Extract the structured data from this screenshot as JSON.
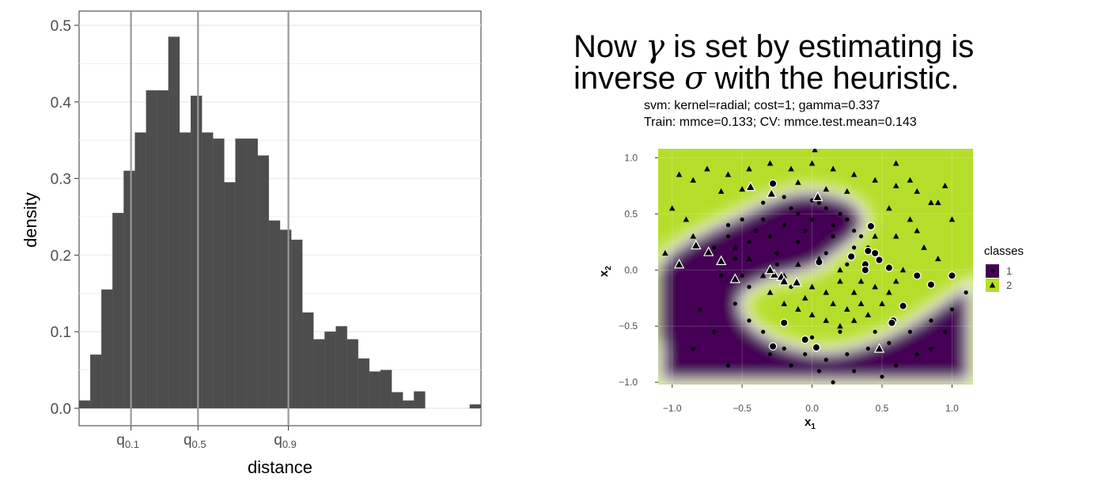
{
  "colors": {
    "bar_fill": "#4d4d4d",
    "quantile_line": "#999999",
    "grid": "#ebebeb",
    "class1_region": "#440154",
    "class2_region": "#b5de2b",
    "boundary": "#ffffff"
  },
  "chart_data": [
    {
      "type": "bar",
      "xlabel": "distance",
      "ylabel": "density",
      "ylim": [
        0,
        0.5
      ],
      "y_ticks": [
        "0.0",
        "0.1",
        "0.2",
        "0.3",
        "0.4",
        "0.5"
      ],
      "y_tick_values": [
        0,
        0.1,
        0.2,
        0.3,
        0.4,
        0.5
      ],
      "x_tick_labels": [
        {
          "base": "q",
          "sub": "0.1",
          "bin": 4.65
        },
        {
          "base": "q",
          "sub": "0.5",
          "bin": 10.65
        },
        {
          "base": "q",
          "sub": "0.9",
          "bin": 18.75
        }
      ],
      "quantile_lines_bin": [
        4.65,
        10.65,
        18.75
      ],
      "values": [
        0.01,
        0.07,
        0.155,
        0.255,
        0.31,
        0.36,
        0.415,
        0.415,
        0.485,
        0.36,
        0.408,
        0.36,
        0.352,
        0.295,
        0.352,
        0.352,
        0.33,
        0.245,
        0.233,
        0.22,
        0.125,
        0.09,
        0.1,
        0.107,
        0.09,
        0.065,
        0.048,
        0.05,
        0.021,
        0.01,
        0.022,
        0.0,
        0.0,
        0.0,
        0.0,
        0.005
      ],
      "grid": true
    },
    {
      "type": "scatter",
      "title_line1_prefix": "Now ",
      "title_gamma": "γ",
      "title_line1_suffix": " is set by estimating is",
      "title_line2_prefix": "inverse ",
      "title_sigma": "σ",
      "title_line2_suffix": " with the heuristic.",
      "subtitle1": "svm: kernel=radial; cost=1; gamma=0.337",
      "subtitle2": "Train: mmce=0.133; CV: mmce.test.mean=0.143",
      "xlabel_base": "x",
      "xlabel_sub": "1",
      "ylabel_base": "x",
      "ylabel_sub": "2",
      "xlim": [
        -1.1,
        1.15
      ],
      "ylim": [
        -1.02,
        1.08
      ],
      "x_ticks": [
        -1.0,
        -0.5,
        0.0,
        0.5,
        1.0
      ],
      "x_tick_labels": [
        "−1.0",
        "−0.5",
        "0.0",
        "0.5",
        "1.0"
      ],
      "y_ticks": [
        -1.0,
        -0.5,
        0.0,
        0.5,
        1.0
      ],
      "y_tick_labels": [
        "−1.0",
        "−0.5",
        "0.0",
        "0.5",
        "1.0"
      ],
      "legend_title": "classes",
      "legend_position": "right",
      "legend_items": [
        {
          "label": "1",
          "shape": "circle",
          "region": "#440154"
        },
        {
          "label": "2",
          "shape": "triangle",
          "region": "#b5de2b"
        }
      ],
      "series": [
        {
          "name": "1",
          "shape": "circle",
          "points": [
            [
              -0.7,
              0.2
            ],
            [
              -0.6,
              0.3
            ],
            [
              -0.55,
              0.1
            ],
            [
              -0.5,
              -0.05
            ],
            [
              -0.45,
              0.25
            ],
            [
              -0.4,
              0.35
            ],
            [
              -0.35,
              0.45
            ],
            [
              -0.3,
              0.3
            ],
            [
              -0.25,
              0.15
            ],
            [
              -0.2,
              0.4
            ],
            [
              -0.15,
              0.55
            ],
            [
              -0.1,
              0.5
            ],
            [
              -0.05,
              0.35
            ],
            [
              0.0,
              0.45
            ],
            [
              0.05,
              0.6
            ],
            [
              0.1,
              0.55
            ],
            [
              0.15,
              0.4
            ],
            [
              0.2,
              0.5
            ],
            [
              0.25,
              0.45
            ],
            [
              0.3,
              0.35
            ],
            [
              0.35,
              0.3
            ],
            [
              0.4,
              0.2
            ],
            [
              -0.65,
              -0.05
            ],
            [
              -0.5,
              0.45
            ],
            [
              -0.35,
              0.6
            ],
            [
              -0.2,
              0.65
            ],
            [
              0.0,
              0.62
            ],
            [
              0.15,
              0.3
            ],
            [
              0.3,
              0.2
            ],
            [
              -0.1,
              0.25
            ],
            [
              -0.6,
              0.4
            ],
            [
              -0.45,
              -0.15
            ],
            [
              -0.55,
              -0.3
            ],
            [
              -0.45,
              -0.45
            ],
            [
              -0.35,
              -0.55
            ],
            [
              -0.2,
              -0.7
            ],
            [
              -0.05,
              -0.75
            ],
            [
              0.1,
              -0.8
            ],
            [
              0.25,
              -0.75
            ],
            [
              0.4,
              -0.7
            ],
            [
              0.55,
              -0.65
            ],
            [
              0.7,
              -0.55
            ],
            [
              0.85,
              -0.45
            ],
            [
              1.0,
              -0.35
            ],
            [
              -0.3,
              -0.75
            ],
            [
              -0.15,
              -0.85
            ],
            [
              0.05,
              -0.9
            ],
            [
              0.3,
              -0.9
            ],
            [
              0.6,
              -0.85
            ],
            [
              0.85,
              -0.7
            ],
            [
              -0.7,
              -0.55
            ],
            [
              -0.8,
              -0.35
            ],
            [
              0.0,
              -0.6
            ],
            [
              0.2,
              -0.55
            ],
            [
              0.45,
              -0.55
            ],
            [
              0.75,
              -0.75
            ],
            [
              0.95,
              -0.55
            ],
            [
              -0.85,
              -0.7
            ],
            [
              -0.6,
              -0.85
            ],
            [
              0.15,
              -1.0
            ],
            [
              0.5,
              -0.95
            ],
            [
              1.1,
              -0.2
            ],
            [
              -0.25,
              0.05
            ],
            [
              0.1,
              0.15
            ],
            [
              0.25,
              0.05
            ],
            [
              -0.15,
              -0.15
            ]
          ],
          "outlined": [
            [
              -0.28,
              0.77
            ],
            [
              0.42,
              0.39
            ],
            [
              0.05,
              0.07
            ],
            [
              0.28,
              0.12
            ],
            [
              0.4,
              0.17
            ],
            [
              0.45,
              0.15
            ],
            [
              0.48,
              0.09
            ],
            [
              0.38,
              0.05
            ],
            [
              0.38,
              0.0
            ],
            [
              0.55,
              0.02
            ],
            [
              0.75,
              -0.05
            ],
            [
              0.85,
              -0.13
            ],
            [
              1.0,
              -0.05
            ],
            [
              0.65,
              -0.32
            ],
            [
              0.58,
              -0.45
            ],
            [
              0.57,
              -0.47
            ],
            [
              -0.2,
              -0.47
            ],
            [
              -0.05,
              -0.62
            ],
            [
              0.03,
              -0.69
            ],
            [
              -0.28,
              -0.68
            ]
          ]
        },
        {
          "name": "2",
          "shape": "triangle",
          "points": [
            [
              -0.95,
              0.85
            ],
            [
              -0.85,
              0.8
            ],
            [
              -0.75,
              0.9
            ],
            [
              -0.6,
              0.85
            ],
            [
              -0.45,
              0.9
            ],
            [
              -0.3,
              0.95
            ],
            [
              -0.15,
              0.9
            ],
            [
              0.0,
              0.95
            ],
            [
              0.15,
              0.9
            ],
            [
              0.3,
              0.85
            ],
            [
              0.45,
              0.8
            ],
            [
              0.6,
              0.75
            ],
            [
              0.75,
              0.7
            ],
            [
              0.9,
              0.6
            ],
            [
              1.0,
              0.45
            ],
            [
              -1.0,
              0.55
            ],
            [
              -0.9,
              0.45
            ],
            [
              -1.05,
              0.15
            ],
            [
              -0.85,
              0.3
            ],
            [
              0.6,
              0.3
            ],
            [
              0.7,
              0.45
            ],
            [
              0.8,
              0.2
            ],
            [
              0.9,
              0.1
            ],
            [
              0.55,
              0.55
            ],
            [
              0.45,
              0.3
            ],
            [
              -0.65,
              0.7
            ],
            [
              -0.5,
              0.72
            ],
            [
              -0.1,
              0.78
            ],
            [
              0.1,
              0.72
            ],
            [
              0.25,
              0.7
            ],
            [
              0.02,
              1.07
            ],
            [
              0.6,
              0.95
            ],
            [
              -0.35,
              -0.05
            ],
            [
              -0.3,
              -0.2
            ],
            [
              -0.2,
              -0.3
            ],
            [
              -0.1,
              -0.35
            ],
            [
              0.0,
              -0.4
            ],
            [
              0.1,
              -0.45
            ],
            [
              0.2,
              -0.5
            ],
            [
              0.3,
              -0.45
            ],
            [
              0.4,
              -0.4
            ],
            [
              0.5,
              -0.3
            ],
            [
              0.55,
              -0.2
            ],
            [
              0.6,
              -0.1
            ],
            [
              0.65,
              0.0
            ],
            [
              0.3,
              -0.2
            ],
            [
              0.2,
              -0.1
            ],
            [
              0.1,
              -0.2
            ],
            [
              0.0,
              -0.15
            ],
            [
              0.15,
              -0.3
            ],
            [
              0.35,
              -0.1
            ],
            [
              0.45,
              -0.15
            ],
            [
              -0.05,
              -0.25
            ],
            [
              0.25,
              -0.35
            ],
            [
              0.05,
              0.1
            ],
            [
              -0.1,
              0.05
            ],
            [
              -0.2,
              -0.05
            ],
            [
              0.2,
              0.0
            ],
            [
              0.35,
              -0.3
            ],
            [
              -0.45,
              0.1
            ],
            [
              -0.55,
              0.2
            ],
            [
              0.75,
              0.35
            ],
            [
              0.85,
              0.6
            ],
            [
              0.7,
              0.8
            ],
            [
              0.95,
              0.75
            ]
          ],
          "outlined": [
            [
              -0.95,
              0.05
            ],
            [
              -0.83,
              0.22
            ],
            [
              -0.74,
              0.16
            ],
            [
              -0.65,
              0.08
            ],
            [
              -0.55,
              -0.08
            ],
            [
              -0.44,
              0.74
            ],
            [
              -0.29,
              0.68
            ],
            [
              -0.27,
              -0.04
            ],
            [
              -0.22,
              -0.06
            ],
            [
              -0.11,
              -0.11
            ],
            [
              0.04,
              0.65
            ],
            [
              0.48,
              -0.7
            ],
            [
              -0.3,
              0.0
            ],
            [
              -0.2,
              -0.1
            ]
          ]
        }
      ]
    }
  ]
}
